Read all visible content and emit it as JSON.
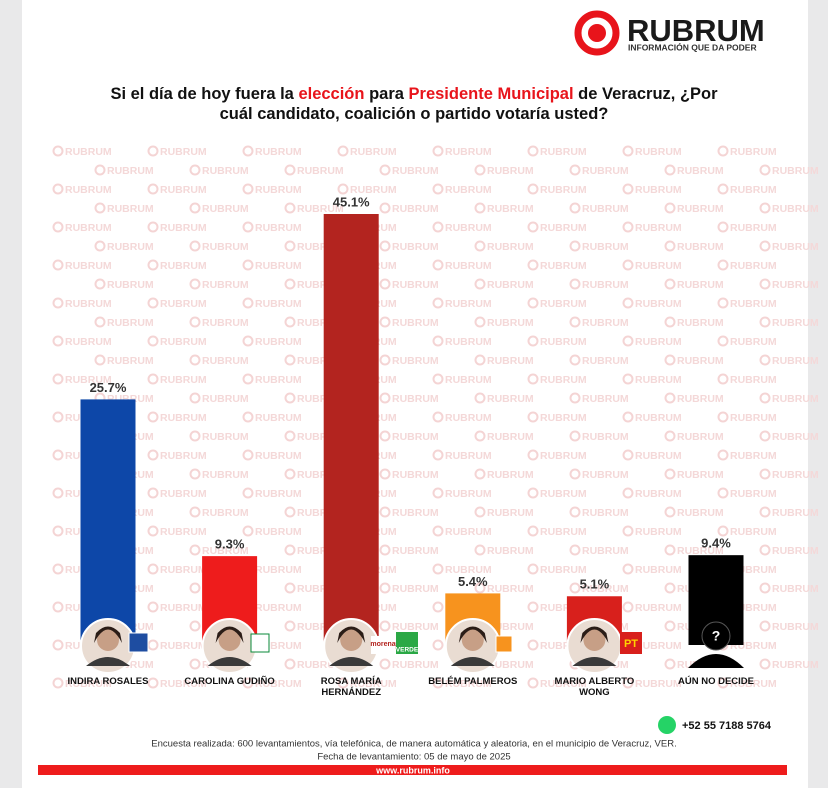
{
  "brand": {
    "name": "RUBRUM",
    "tagline": "INFORMACIÓN QUE DA PODER"
  },
  "chart_data": {
    "type": "bar",
    "title": [
      [
        {
          "text": "Si el día de hoy fuera la "
        },
        {
          "text": "elección",
          "highlight": true
        },
        {
          "text": " para "
        },
        {
          "text": "Presidente Municipal",
          "highlight": true
        },
        {
          "text": " de Veracruz, ¿Por"
        }
      ],
      [
        {
          "text": "cuál candidato, coalición o partido votaría usted?"
        }
      ]
    ],
    "highlight_color": "#e8141b",
    "categories": [
      "INDIRA ROSALES",
      "CAROLINA GUDIÑO",
      "ROSA MARÍA HERNÁNDEZ",
      "BELÉM PALMEROS",
      "MARIO ALBERTO WONG",
      "AÚN NO DECIDE"
    ],
    "values": [
      25.7,
      9.3,
      45.1,
      5.4,
      5.1,
      9.4
    ],
    "value_labels": [
      "25.7%",
      "9.3%",
      "45.1%",
      "5.4%",
      "5.1%",
      "9.4%"
    ],
    "colors": [
      "#0d47a8",
      "#ee1c1c",
      "#b3241f",
      "#f7931e",
      "#d8201c",
      "#000000"
    ],
    "party_labels": [
      "morena",
      "VERDE",
      "PT"
    ],
    "watermark": "RUBRUM"
  },
  "footer": {
    "phone": "+52 55 7188 5764",
    "note": "Encuesta realizada: 600 levantamientos, vía telefónica, de manera automática y aleatoria, en el municipio de Veracruz, VER.",
    "date": "Fecha de levantamiento: 05 de mayo de 2025",
    "url": "www.rubrum.info"
  }
}
